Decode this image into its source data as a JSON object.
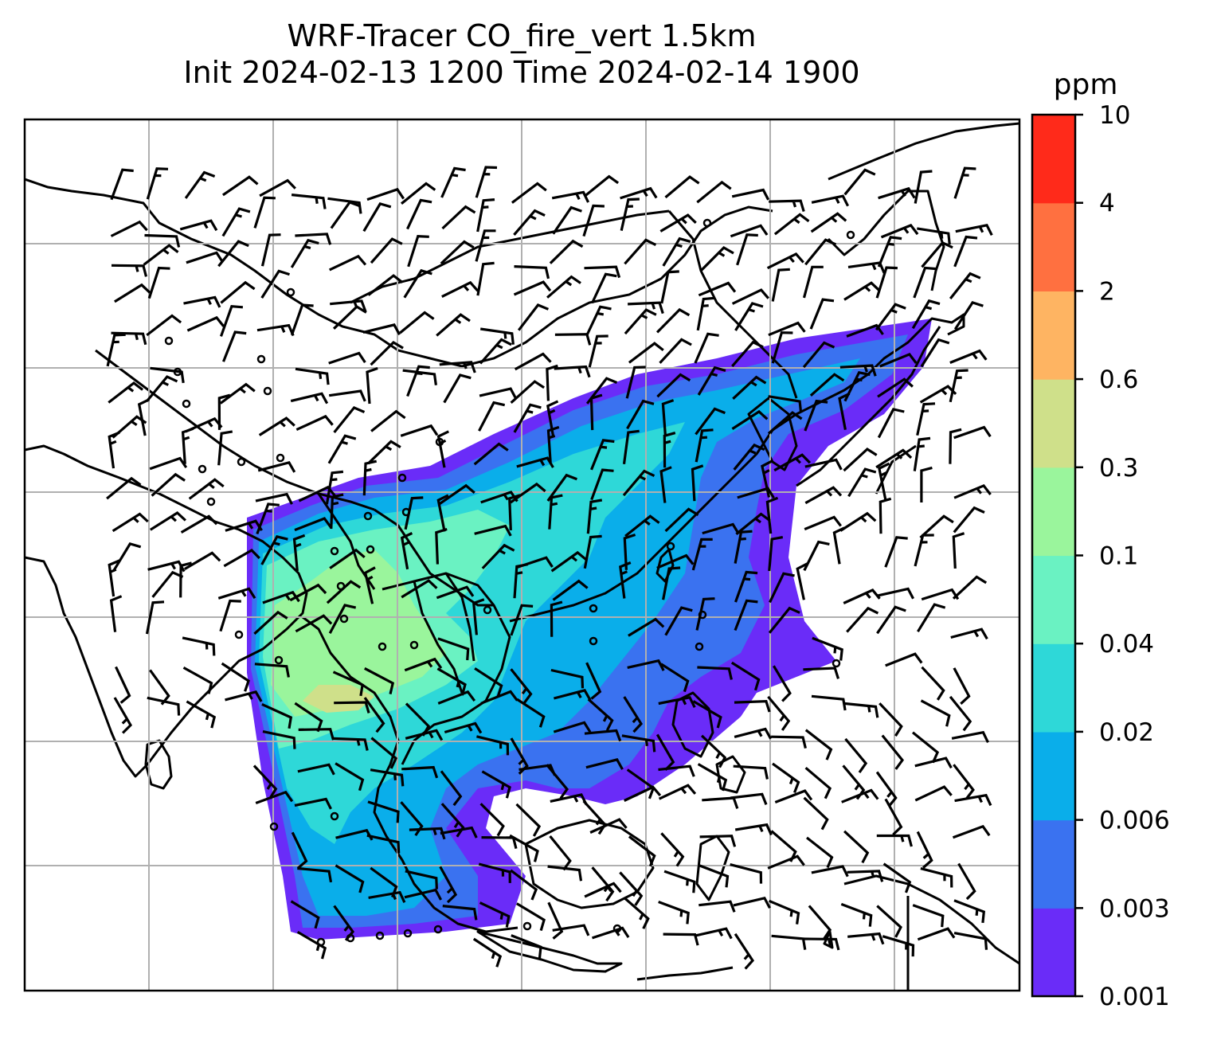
{
  "title": {
    "line1": "WRF-Tracer CO_fire_vert 1.5km",
    "line2": "Init 2024-02-13 1200 Time 2024-02-14 1900"
  },
  "colorbar": {
    "unit": "ppm",
    "ticks": [
      "0.001",
      "0.003",
      "0.006",
      "0.02",
      "0.04",
      "0.1",
      "0.3",
      "0.6",
      "2",
      "4",
      "10"
    ],
    "colors": [
      "#6a2cf8",
      "#3a72f0",
      "#0aaeea",
      "#2ed8d8",
      "#6af2c2",
      "#9af59c",
      "#cfe08a",
      "#feb462",
      "#ff7040",
      "#ff2a1a"
    ]
  }
}
